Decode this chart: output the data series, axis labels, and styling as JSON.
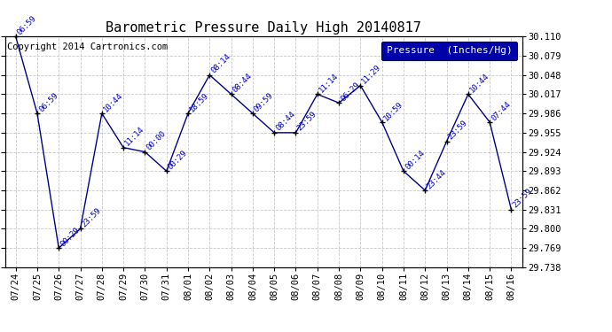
{
  "title": "Barometric Pressure Daily High 20140817",
  "legend_label": "Pressure  (Inches/Hg)",
  "copyright_text": "Copyright 2014 Cartronics.com",
  "dates": [
    "07/24",
    "07/25",
    "07/26",
    "07/27",
    "07/28",
    "07/29",
    "07/30",
    "07/31",
    "08/01",
    "08/02",
    "08/03",
    "08/04",
    "08/05",
    "08/06",
    "08/07",
    "08/08",
    "08/09",
    "08/10",
    "08/11",
    "08/12",
    "08/13",
    "08/14",
    "08/15",
    "08/16"
  ],
  "values": [
    30.11,
    29.986,
    29.769,
    29.8,
    29.986,
    29.931,
    29.924,
    29.893,
    29.986,
    30.048,
    30.017,
    29.986,
    29.955,
    29.955,
    30.017,
    30.003,
    30.031,
    29.972,
    29.893,
    29.862,
    29.941,
    30.017,
    29.972,
    29.831
  ],
  "time_labels": [
    "06:59",
    "06:59",
    "00:29",
    "23:59",
    "10:44",
    "11:14",
    "00:00",
    "00:29",
    "18:59",
    "08:14",
    "08:44",
    "09:59",
    "08:44",
    "23:59",
    "11:14",
    "06:29",
    "11:29",
    "10:59",
    "00:14",
    "23:44",
    "23:59",
    "10:44",
    "07:44",
    "23:59"
  ],
  "ylim_min": 29.738,
  "ylim_max": 30.11,
  "yticks": [
    29.738,
    29.769,
    29.8,
    29.831,
    29.862,
    29.893,
    29.924,
    29.955,
    29.986,
    30.017,
    30.048,
    30.079,
    30.11
  ],
  "line_color": "#00008B",
  "dot_color": "#000000",
  "label_color": "#0000CC",
  "grid_color": "#C8C8C8",
  "bg_color": "#FFFFFF",
  "legend_bg": "#0000AA",
  "legend_fg": "#FFFFFF",
  "title_fontsize": 11,
  "annot_fontsize": 6.5,
  "tick_fontsize": 7.5,
  "copy_fontsize": 7.5,
  "legend_fontsize": 8
}
